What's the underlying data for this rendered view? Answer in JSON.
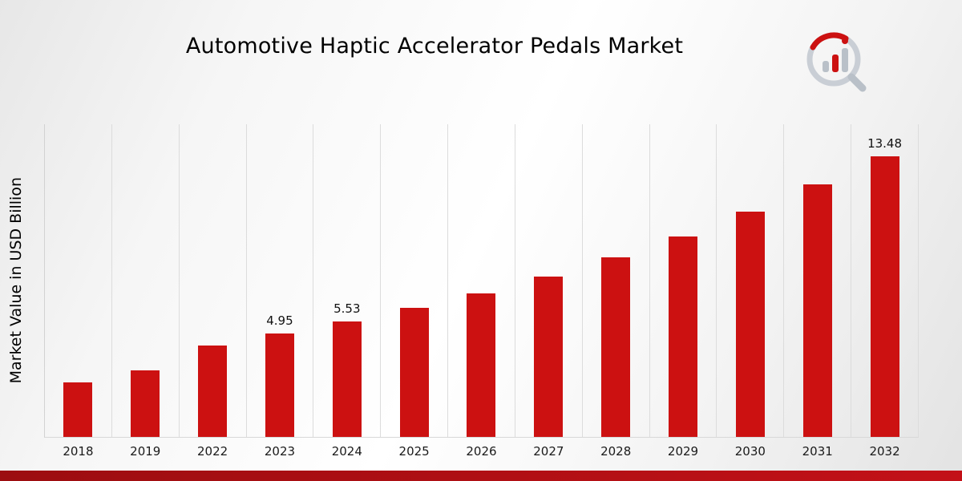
{
  "header": {
    "title": "Automotive Haptic Accelerator Pedals Market"
  },
  "icons": {
    "logo": "bar-chart-magnifier-logo"
  },
  "colors": {
    "bar": "#cc1111",
    "accent_red": "#cc1111",
    "logo_gray": "#bcc3cb",
    "footer_gradient_start": "#9c0d10",
    "footer_gradient_end": "#c31118",
    "gridline": "#dcdcdc"
  },
  "chart_data": {
    "type": "bar",
    "title": "Automotive Haptic Accelerator Pedals Market",
    "xlabel": "",
    "ylabel": "Market Value in USD Billion",
    "categories": [
      "2018",
      "2019",
      "2022",
      "2023",
      "2024",
      "2025",
      "2026",
      "2027",
      "2028",
      "2029",
      "2030",
      "2031",
      "2032"
    ],
    "values": [
      2.6,
      3.2,
      4.4,
      4.95,
      5.53,
      6.2,
      6.9,
      7.7,
      8.6,
      9.6,
      10.8,
      12.1,
      13.48
    ],
    "value_labels": [
      "",
      "",
      "",
      "4.95",
      "5.53",
      "",
      "",
      "",
      "",
      "",
      "",
      "",
      "13.48"
    ],
    "bar_color": "#cc1111",
    "ylim": [
      0,
      15
    ],
    "grid": "vertical-only",
    "legend": "none"
  }
}
